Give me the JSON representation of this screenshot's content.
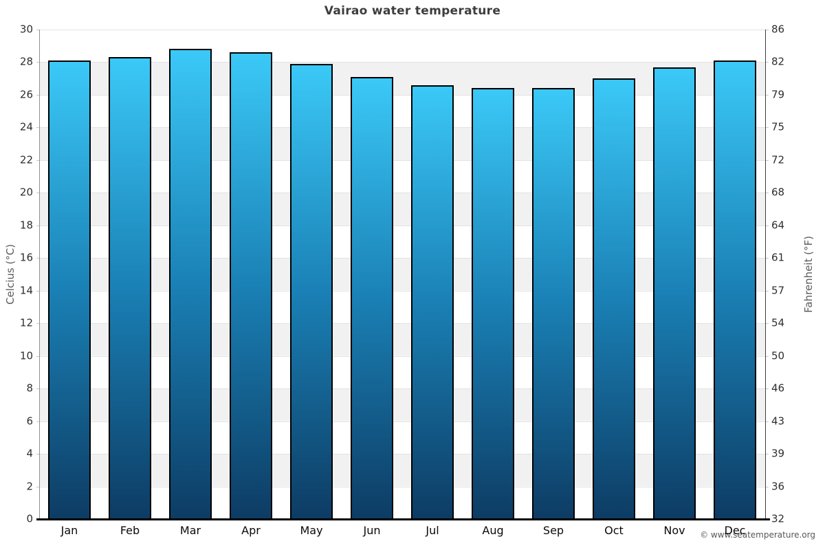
{
  "page": {
    "watermark": "© www.seatemperature.org"
  },
  "chart_data": {
    "type": "bar",
    "title": "Vairao water temperature",
    "categories": [
      "Jan",
      "Feb",
      "Mar",
      "Apr",
      "May",
      "Jun",
      "Jul",
      "Aug",
      "Sep",
      "Oct",
      "Nov",
      "Dec"
    ],
    "values": [
      28.1,
      28.3,
      28.8,
      28.6,
      27.9,
      27.1,
      26.6,
      26.4,
      26.4,
      27.0,
      27.7,
      28.1
    ],
    "unit": "°C",
    "ylabel_left": "Celcius (°C)",
    "ylabel_right": "Fahrenheit (°F)",
    "ylim": [
      0,
      30
    ],
    "yticks_celsius": [
      0,
      2,
      4,
      6,
      8,
      10,
      12,
      14,
      16,
      18,
      20,
      22,
      24,
      26,
      28,
      30
    ],
    "yticks_fahrenheit_labels": [
      "32",
      "36",
      "39",
      "43",
      "46",
      "50",
      "54",
      "57",
      "61",
      "64",
      "68",
      "72",
      "75",
      "79",
      "82",
      "86"
    ],
    "xlabel": "",
    "legend": null,
    "grid": "horizontal-bands-alternating-white-gray",
    "colors": {
      "bar_top": "#3bc9f7",
      "bar_mid": "#1a80b5",
      "bar_bottom": "#0d3c64",
      "bar_border": "#000000",
      "band_gray": "#f1f1f1",
      "title_text": "#3d3d3d",
      "tick_text": "#2e2e2e",
      "axis_title_text": "#5c5c5c"
    }
  }
}
